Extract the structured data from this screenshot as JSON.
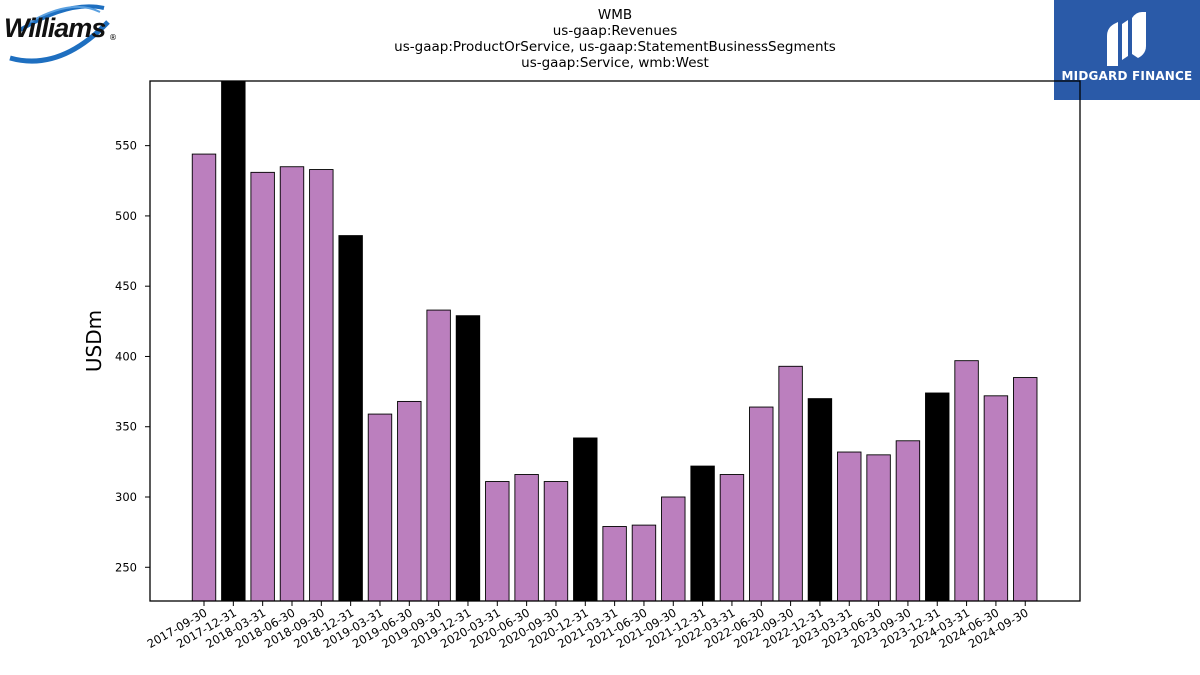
{
  "title_lines": [
    "WMB",
    "us-gaap:Revenues",
    "us-gaap:ProductOrService, us-gaap:StatementBusinessSegments",
    "us-gaap:Service, wmb:West"
  ],
  "logos": {
    "left_text": "Williams",
    "left_mark": "®",
    "right_text": "MIDGARD FINANCE"
  },
  "colors": {
    "quarter_bar": "#bb7fbe",
    "year_end_bar": "#000000",
    "logo_bg": "#2a5aa8"
  },
  "chart_data": {
    "type": "bar",
    "ylabel": "USDm",
    "xlabel": "",
    "ylim": [
      226,
      596
    ],
    "yticks": [
      250,
      300,
      350,
      400,
      450,
      500,
      550
    ],
    "categories": [
      "2017-09-30",
      "2017-12-31",
      "2018-03-31",
      "2018-06-30",
      "2018-09-30",
      "2018-12-31",
      "2019-03-31",
      "2019-06-30",
      "2019-09-30",
      "2019-12-31",
      "2020-03-31",
      "2020-06-30",
      "2020-09-30",
      "2020-12-31",
      "2021-03-31",
      "2021-06-30",
      "2021-09-30",
      "2021-12-31",
      "2022-03-31",
      "2022-06-30",
      "2022-09-30",
      "2022-12-31",
      "2023-03-31",
      "2023-06-30",
      "2023-09-30",
      "2023-12-31",
      "2024-03-31",
      "2024-06-30",
      "2024-09-30"
    ],
    "values": [
      544,
      597,
      531,
      535,
      533,
      486,
      359,
      368,
      433,
      429,
      311,
      316,
      311,
      342,
      279,
      280,
      300,
      322,
      316,
      364,
      393,
      370,
      332,
      330,
      340,
      374,
      397,
      372,
      385
    ],
    "year_end_flags": [
      false,
      true,
      false,
      false,
      false,
      true,
      false,
      false,
      false,
      true,
      false,
      false,
      false,
      true,
      false,
      false,
      false,
      true,
      false,
      false,
      false,
      true,
      false,
      false,
      false,
      true,
      false,
      false,
      false
    ],
    "grid": false,
    "legend": "none"
  }
}
